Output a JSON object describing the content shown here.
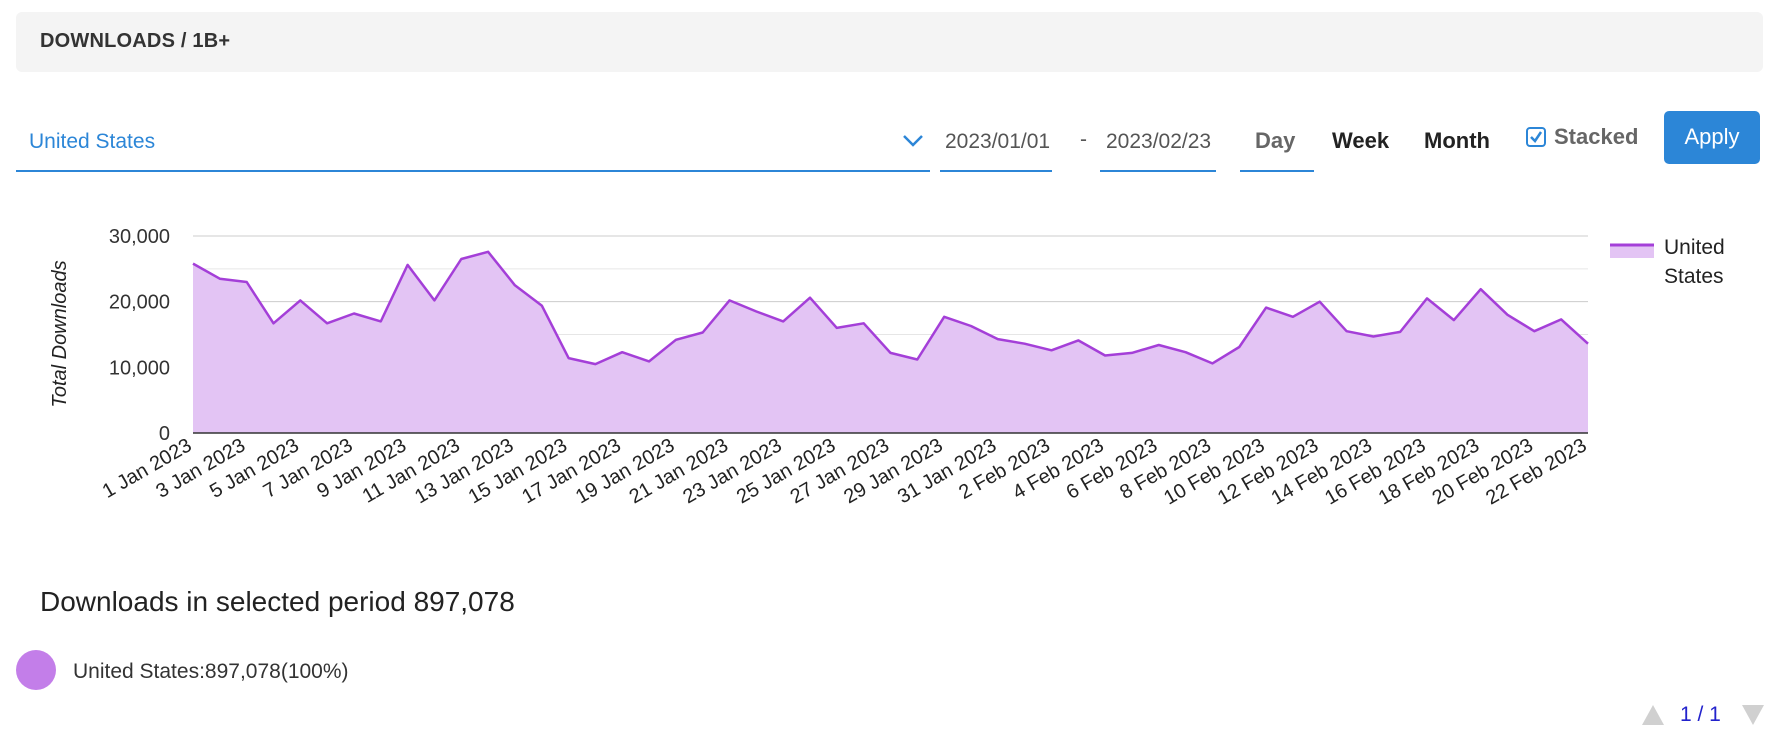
{
  "header": {
    "title": "DOWNLOADS / 1B+"
  },
  "filters": {
    "country": "United States",
    "date_from": "2023/01/01",
    "date_separator": "-",
    "date_to": "2023/02/23",
    "ranges": {
      "day": "Day",
      "week": "Week",
      "month": "Month",
      "selected": "Day"
    },
    "stacked_label": "Stacked",
    "stacked_checked": true,
    "apply_label": "Apply"
  },
  "colors": {
    "accent": "#2c86d7",
    "series_line": "#a43fd8",
    "series_fill": "#e3c4f4",
    "series_dot": "#c37ee9"
  },
  "chart_data": {
    "type": "area",
    "ylabel": "Total Downloads",
    "ylim": [
      0,
      30000
    ],
    "yticks": [
      "0",
      "10,000",
      "20,000",
      "30,000"
    ],
    "grid": true,
    "legend": "right",
    "legend_label": "United States",
    "x_tick_labels": [
      "1 Jan 2023",
      "3 Jan 2023",
      "5 Jan 2023",
      "7 Jan 2023",
      "9 Jan 2023",
      "11 Jan 2023",
      "13 Jan 2023",
      "15 Jan 2023",
      "17 Jan 2023",
      "19 Jan 2023",
      "21 Jan 2023",
      "23 Jan 2023",
      "25 Jan 2023",
      "27 Jan 2023",
      "29 Jan 2023",
      "31 Jan 2023",
      "2 Feb 2023",
      "4 Feb 2023",
      "6 Feb 2023",
      "8 Feb 2023",
      "10 Feb 2023",
      "12 Feb 2023",
      "14 Feb 2023",
      "16 Feb 2023",
      "18 Feb 2023",
      "20 Feb 2023",
      "22 Feb 2023"
    ],
    "series": [
      {
        "name": "United States",
        "values": [
          25800,
          23500,
          23000,
          16700,
          20200,
          16700,
          18200,
          17000,
          25600,
          20200,
          26500,
          27600,
          22500,
          19400,
          11400,
          10500,
          12300,
          10900,
          14200,
          15300,
          20200,
          18500,
          17000,
          20600,
          16000,
          16700,
          12200,
          11200,
          17700,
          16300,
          14300,
          13600,
          12600,
          14100,
          11800,
          12200,
          13400,
          12300,
          10600,
          13100,
          19100,
          17700,
          20000,
          15500,
          14700,
          15400,
          20500,
          17200,
          21900,
          18000,
          15500,
          17300,
          13600
        ]
      }
    ]
  },
  "summary": {
    "label": "Downloads in selected period",
    "total": "897,078"
  },
  "breakdown": [
    {
      "country": "United States",
      "value": "897,078(100%)"
    }
  ],
  "pager": {
    "text": "1 / 1"
  }
}
